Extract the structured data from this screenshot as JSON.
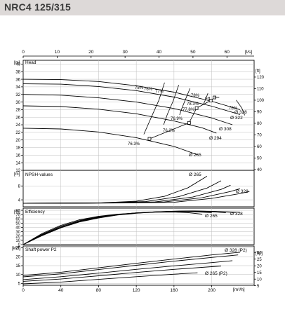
{
  "header": {
    "title": "NRC4 125/315"
  },
  "chart_data": {
    "type": "line",
    "top_axis": {
      "unit": "[l/s]",
      "range": [
        0,
        68
      ],
      "ticks": [
        0,
        10,
        20,
        30,
        40,
        50,
        60
      ]
    },
    "bottom_axis": {
      "unit": "[m³/h]",
      "range": [
        0,
        245
      ],
      "ticks": [
        0,
        40,
        80,
        120,
        160,
        200
      ]
    },
    "diameters": [
      "Ø 328",
      "Ø 322",
      "Ø 308",
      "Ø 294",
      "Ø 265"
    ],
    "head": {
      "label": "Head",
      "left_unit": "[m]",
      "right_unit": "[ft]",
      "range": [
        12,
        41
      ],
      "ticks": [
        12,
        14,
        16,
        18,
        20,
        22,
        24,
        26,
        28,
        30,
        32,
        34,
        36,
        38,
        40
      ],
      "right_ticks": [
        40,
        50,
        60,
        70,
        80,
        90,
        100,
        110,
        120
      ],
      "curves": [
        {
          "name": "Ø 328",
          "x": [
            0,
            40,
            80,
            120,
            160,
            200,
            230
          ],
          "y": [
            36,
            35.9,
            35.4,
            34.3,
            32.6,
            30.2,
            28
          ]
        },
        {
          "name": "Ø 322",
          "x": [
            0,
            40,
            80,
            120,
            160,
            200,
            230
          ],
          "y": [
            34.8,
            34.7,
            34.1,
            33,
            31.3,
            28.9,
            26.7
          ]
        },
        {
          "name": "Ø 308",
          "x": [
            0,
            40,
            80,
            120,
            160,
            200,
            222
          ],
          "y": [
            32,
            31.8,
            31.1,
            30,
            28.3,
            25.8,
            24
          ]
        },
        {
          "name": "Ø 294",
          "x": [
            0,
            40,
            80,
            120,
            160,
            190,
            205
          ],
          "y": [
            29,
            28.8,
            28.1,
            26.9,
            25,
            23.2,
            21.8
          ]
        },
        {
          "name": "Ø 265",
          "x": [
            0,
            40,
            80,
            120,
            160,
            185
          ],
          "y": [
            23.1,
            22.9,
            22.1,
            20.6,
            18.3,
            16.1
          ]
        }
      ],
      "efficiency_labels": [
        "75%",
        "76%",
        "77%",
        "78%",
        "Eff.",
        "78.3%",
        "77.8%",
        "76.9%",
        "76.2%",
        "76.3%",
        "76%"
      ],
      "iso_efficiency_lines": [
        {
          "label": "75%",
          "x": [
            150,
            144,
            136,
            128
          ],
          "y": [
            35.1,
            30.5,
            26,
            21.5
          ]
        },
        {
          "label": "76%",
          "x": [
            165,
            159,
            153,
            149
          ],
          "y": [
            34.5,
            30.2,
            26.8,
            24
          ]
        },
        {
          "label": "77%",
          "x": [
            177,
            172,
            168,
            166
          ],
          "y": [
            33.6,
            30.6,
            28.1,
            26.6
          ]
        },
        {
          "label": "78%",
          "x": [
            196,
            193,
            191
          ],
          "y": [
            32.3,
            30.4,
            29.3
          ]
        },
        {
          "label": "76%",
          "x": [
            226,
            232,
            235
          ],
          "y": [
            30.5,
            28.4,
            26.5
          ]
        }
      ],
      "bep_points": [
        {
          "x": 203,
          "y": 31.2
        },
        {
          "x": 199,
          "y": 30.4
        },
        {
          "x": 184,
          "y": 28.4
        },
        {
          "x": 176,
          "y": 24.5
        },
        {
          "x": 134,
          "y": 20.3
        }
      ]
    },
    "npsh": {
      "label": "NPSH-values",
      "left_unit": "[m]",
      "range": [
        2,
        12.5
      ],
      "ticks": [
        4,
        8
      ],
      "curves": [
        {
          "name": "Ø 265",
          "x": [
            0,
            80,
            120,
            150,
            175,
            195
          ],
          "y": [
            3,
            3.1,
            3.6,
            5,
            7.5,
            10.8
          ]
        },
        {
          "name": "",
          "x": [
            0,
            80,
            130,
            165,
            195,
            210
          ],
          "y": [
            3,
            3.1,
            3.5,
            4.9,
            7.4,
            9.5
          ]
        },
        {
          "name": "",
          "x": [
            0,
            90,
            140,
            180,
            210,
            220
          ],
          "y": [
            3,
            3.1,
            3.4,
            4.8,
            7,
            8.2
          ]
        },
        {
          "name": "",
          "x": [
            0,
            100,
            150,
            190,
            220,
            230
          ],
          "y": [
            3,
            3.1,
            3.4,
            4.6,
            6.4,
            7.2
          ]
        },
        {
          "name": "Ø 328",
          "x": [
            0,
            110,
            160,
            200,
            230,
            240
          ],
          "y": [
            3,
            3.1,
            3.3,
            4.4,
            5.8,
            6.4
          ]
        }
      ]
    },
    "efficiency": {
      "label": "Efficiency",
      "left_unit": "[%]",
      "range": [
        0,
        85
      ],
      "ticks": [
        0,
        10,
        20,
        30,
        40,
        50,
        60,
        70,
        80
      ],
      "curves": [
        {
          "name": "Ø 265",
          "x": [
            0,
            20,
            40,
            60,
            80,
            100,
            120,
            140,
            160,
            175,
            190
          ],
          "y": [
            0,
            26,
            45,
            58,
            66,
            71,
            73.8,
            75.5,
            75.8,
            74.5,
            71
          ]
        },
        {
          "name": "",
          "x": [
            0,
            20,
            40,
            60,
            80,
            100,
            120,
            140,
            160,
            180,
            200
          ],
          "y": [
            0,
            24,
            43,
            56,
            65,
            70.5,
            74,
            76.2,
            77,
            76.5,
            74.5
          ]
        },
        {
          "name": "",
          "x": [
            0,
            20,
            40,
            60,
            80,
            100,
            120,
            140,
            160,
            180,
            200,
            215
          ],
          "y": [
            0,
            23,
            41,
            55,
            64,
            70,
            74,
            76.5,
            77.8,
            77.8,
            76.5,
            74.5
          ]
        },
        {
          "name": "",
          "x": [
            0,
            20,
            40,
            60,
            80,
            100,
            120,
            140,
            160,
            180,
            200,
            225
          ],
          "y": [
            0,
            22,
            40,
            54,
            63,
            69.5,
            73.5,
            76.5,
            78,
            78.3,
            77.5,
            75
          ]
        },
        {
          "name": "Ø 328",
          "x": [
            0,
            20,
            40,
            60,
            80,
            100,
            120,
            140,
            160,
            180,
            200,
            230
          ],
          "y": [
            0,
            21,
            39,
            53,
            62,
            69,
            73,
            76,
            77.8,
            78.3,
            77.8,
            75.5
          ]
        }
      ]
    },
    "power": {
      "label": "Shaft power P2",
      "left_unit": "[kW]",
      "right_unit": "[hp]",
      "range": [
        4,
        26
      ],
      "ticks": [
        5,
        10,
        15,
        20,
        25
      ],
      "right_ticks": [
        5,
        10,
        15,
        20,
        25,
        30
      ],
      "curves": [
        {
          "name": "Ø 328 (P2)",
          "x": [
            0,
            40,
            80,
            120,
            160,
            200,
            230
          ],
          "y": [
            9.5,
            11.3,
            13.8,
            16.3,
            18.7,
            21,
            22.5
          ]
        },
        {
          "name": "",
          "x": [
            0,
            40,
            80,
            120,
            160,
            200,
            228
          ],
          "y": [
            8.7,
            10.4,
            12.8,
            15.2,
            17.5,
            19.6,
            21
          ]
        },
        {
          "name": "",
          "x": [
            0,
            40,
            80,
            120,
            160,
            200,
            222
          ],
          "y": [
            7.2,
            8.8,
            10.8,
            12.9,
            14.9,
            16.7,
            17.8
          ]
        },
        {
          "name": "",
          "x": [
            0,
            40,
            80,
            120,
            160,
            200,
            210
          ],
          "y": [
            6.2,
            7.5,
            9.3,
            11.2,
            12.9,
            14.4,
            14.8
          ]
        },
        {
          "name": "Ø 265 (P2)",
          "x": [
            0,
            40,
            80,
            120,
            160,
            185
          ],
          "y": [
            4.8,
            5.8,
            7.3,
            8.8,
            10.2,
            11
          ]
        }
      ]
    }
  }
}
